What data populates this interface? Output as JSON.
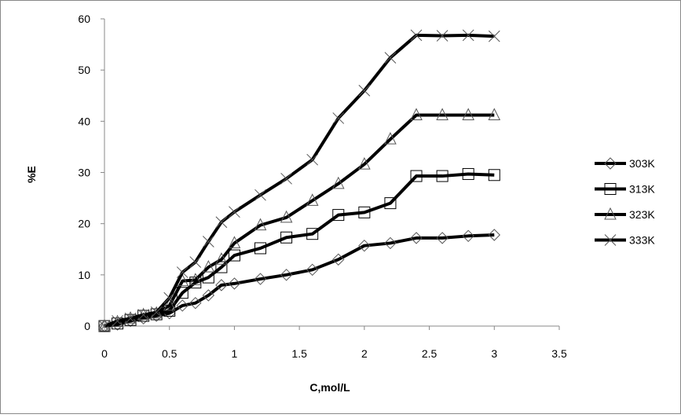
{
  "chart_data": {
    "type": "line",
    "title": "",
    "xlabel": "C,mol/L",
    "ylabel": "%E",
    "xlim": [
      0,
      3.5
    ],
    "ylim": [
      0,
      60
    ],
    "xticks": [
      "0",
      "0.5",
      "1",
      "1.5",
      "2",
      "2.5",
      "3",
      "3.5"
    ],
    "yticks": [
      "0",
      "10",
      "20",
      "30",
      "40",
      "50",
      "60"
    ],
    "grid": false,
    "legend_position": "right",
    "x": [
      0,
      0.1,
      0.2,
      0.3,
      0.4,
      0.5,
      0.6,
      0.7,
      0.8,
      0.9,
      1.0,
      1.2,
      1.4,
      1.6,
      1.8,
      2.0,
      2.2,
      2.4,
      2.6,
      2.8,
      3.0
    ],
    "series": [
      {
        "name": "303K",
        "marker": "diamond",
        "values": [
          0,
          0.3,
          1,
          1.5,
          2,
          2.5,
          4,
          4.5,
          6,
          8,
          8.3,
          9.2,
          10,
          11,
          13,
          15.7,
          16.2,
          17.2,
          17.2,
          17.6,
          17.8
        ]
      },
      {
        "name": "313K",
        "marker": "square",
        "values": [
          0,
          0.5,
          1.2,
          2,
          2.3,
          3,
          6.5,
          8.5,
          9.5,
          11.5,
          13.8,
          15.2,
          17.3,
          18,
          21.7,
          22.2,
          24,
          29.3,
          29.3,
          29.7,
          29.5
        ]
      },
      {
        "name": "323K",
        "marker": "triangle",
        "values": [
          0,
          0.8,
          1.5,
          2.2,
          2.5,
          4,
          8.8,
          9,
          11.5,
          13,
          16.2,
          19.7,
          21.2,
          24.5,
          27.8,
          31.6,
          36.5,
          41.2,
          41.2,
          41.2,
          41.2
        ]
      },
      {
        "name": "333K",
        "marker": "x",
        "values": [
          0,
          1,
          1.5,
          2.2,
          2.7,
          5.5,
          10.5,
          12.5,
          16.5,
          20.3,
          22.3,
          25.6,
          28.8,
          32.5,
          40.6,
          46,
          52.4,
          56.8,
          56.7,
          56.8,
          56.6
        ]
      }
    ]
  }
}
